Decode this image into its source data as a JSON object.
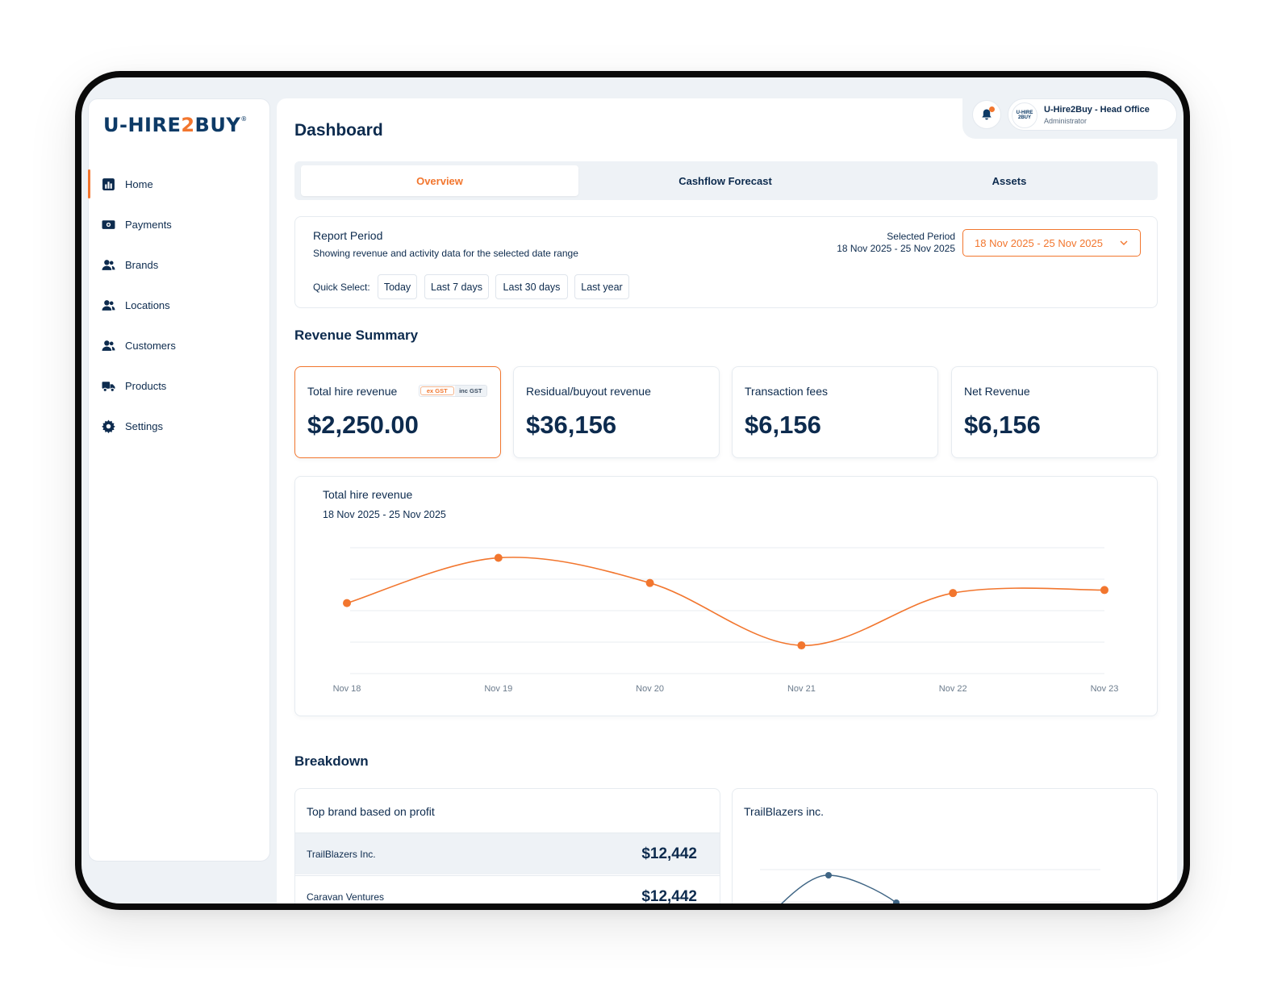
{
  "brand": {
    "logo_left": "U-HIRE",
    "logo_two": "2",
    "logo_right": "BUY",
    "logo_mark": "®",
    "accent": "#f2762e",
    "primary": "#0d2b4e"
  },
  "sidebar": {
    "items": [
      {
        "label": "Home",
        "icon": "chart-icon",
        "active": true
      },
      {
        "label": "Payments",
        "icon": "cash-icon"
      },
      {
        "label": "Brands",
        "icon": "users-icon"
      },
      {
        "label": "Locations",
        "icon": "users-icon"
      },
      {
        "label": "Customers",
        "icon": "users-icon"
      },
      {
        "label": "Products",
        "icon": "truck-icon"
      },
      {
        "label": "Settings",
        "icon": "gear-icon"
      }
    ]
  },
  "header": {
    "title": "Dashboard",
    "user": {
      "name": "U-Hire2Buy - Head Office",
      "role": "Administrator",
      "avatar_text": "U-HIRE 2BUY"
    }
  },
  "tabs": [
    {
      "label": "Overview",
      "active": true
    },
    {
      "label": "Cashflow Forecast"
    },
    {
      "label": "Assets"
    }
  ],
  "report_period": {
    "title": "Report Period",
    "subtitle": "Showing revenue and activity data for the selected date range",
    "selected_label": "Selected Period",
    "selected_value": "18 Nov 2025 - 25 Nov 2025",
    "date_button": "18 Nov 2025 - 25 Nov 2025",
    "quick_select_label": "Quick Select:",
    "quick_select": [
      "Today",
      "Last 7 days",
      "Last 30 days",
      "Last year"
    ]
  },
  "revenue_summary": {
    "title": "Revenue Summary",
    "cards": [
      {
        "label": "Total hire revenue",
        "value": "$2,250.00",
        "selected": true,
        "gst_ex": "ex GST",
        "gst_inc": "inc GST"
      },
      {
        "label": "Residual/buyout revenue",
        "value": "$36,156"
      },
      {
        "label": "Transaction fees",
        "value": "$6,156"
      },
      {
        "label": "Net Revenue",
        "value": "$6,156"
      }
    ]
  },
  "chart_panel": {
    "title": "Total hire revenue",
    "subtitle": "18 Nov 2025 - 25 Nov 2025"
  },
  "chart_data": {
    "type": "line",
    "title": "Total hire revenue",
    "subtitle": "18 Nov 2025 - 25 Nov 2025",
    "categories": [
      "Nov 18",
      "Nov 19",
      "Nov 20",
      "Nov 21",
      "Nov 22",
      "Nov 23"
    ],
    "series": [
      {
        "values": [
          45,
          90,
          65,
          3,
          55,
          58
        ],
        "color": "#f2762e"
      }
    ],
    "ylim": [
      -25,
      100
    ],
    "grid": true,
    "smooth": true
  },
  "breakdown": {
    "title": "Breakdown",
    "left": {
      "title": "Top brand based on profit",
      "rows": [
        {
          "name": "TrailBlazers Inc.",
          "value": "$12,442"
        },
        {
          "name": "Caravan Ventures",
          "value": "$12,442"
        }
      ]
    },
    "right": {
      "title": "TrailBlazers inc."
    }
  }
}
